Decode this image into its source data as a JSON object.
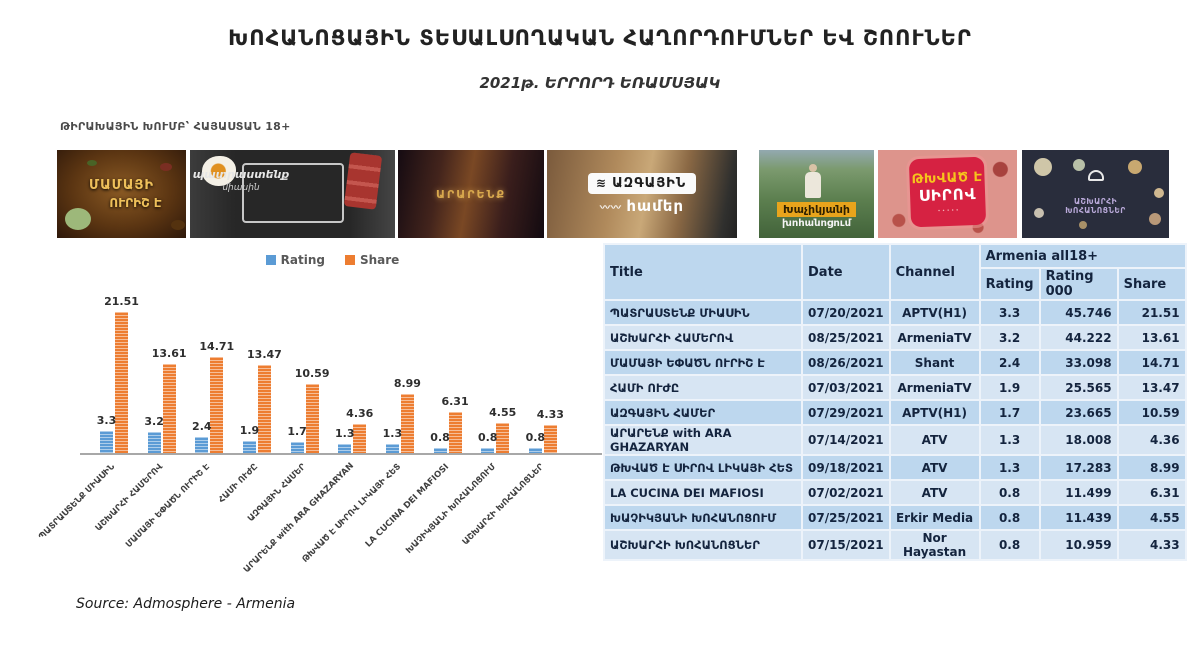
{
  "page": {
    "title": "ԽՈՀԱՆՈՑԱՅԻՆ ՏԵՍԱԼՍՈՂԱԿԱՆ ՀԱՂՈՐԴՈՒՄՆԵՐ ԵՎ ՇՈՈՒՆԵՐ",
    "subtitle": "2021թ. ԵՐՐՈՐԴ ԵՌԱՄՍՅԱԿ",
    "audience_note": "ԹԻՐԱԽԱՅԻՆ ԽՈՒՄԲ՝ ՀԱՅԱՍՏԱՆ 18+",
    "source": "Source: Admosphere - Armenia"
  },
  "thumbnails": [
    {
      "id": "mamayi-urish-e",
      "caption_lines": [
        "ՄԱՄԱՅԻ",
        "ՈՒՐԻՇ Է"
      ]
    },
    {
      "id": "patrastenq-miasin",
      "caption_lines": [
        "պատրաստենք",
        "միասին"
      ]
    },
    {
      "id": "ararenq",
      "caption_lines": [
        "ԱՐԱՐԵՆՔ"
      ]
    },
    {
      "id": "azgayin-hamer",
      "caption_lines": [
        "ԱԶԳԱՅԻՆ",
        "համեր"
      ]
    },
    {
      "id": "khachikyani-khohanocum",
      "caption_lines": [
        "Խաչիկյանի",
        "խոհանոցում"
      ]
    },
    {
      "id": "tkhvats-e-sirov",
      "caption_lines": [
        "ԹԽՎԱԾ Է",
        "ՍԻՐՈՎ"
      ]
    },
    {
      "id": "ashkharhi-khohanocner",
      "caption_lines": [
        "ԱՇԽԱՐՀԻ",
        "ԽՈՀԱՆՈՑՆԵՐ"
      ]
    }
  ],
  "chart_data": {
    "type": "bar",
    "title": "",
    "categories": [
      "ՊԱՏՐԱՍՏԵՆՔ ՄԻԱՍԻՆ",
      "ԱՇԽԱՐՀԻ ՀԱՄԵՐՈՎ",
      "ՄԱՄԱՅԻ ԵՓԱԾՆ ՈՒՐԻՇ Է",
      "ՀԱՄԻ ՈՒԺԸ",
      "ԱԶԳԱՅԻՆ ՀԱՄԵՐ",
      "ԱՐԱՐԵՆՔ with ARA GHAZARYAN",
      "ԹԽՎԱԾ Է ՍԻՐՈՎ ԼԻԿԱՅԻ ՀԵՏ",
      "LA CUCINA DEI MAFIOSI",
      "ԽԱՉԻԿՅԱՆԻ ԽՈՀԱՆՈՑՈՒՄ",
      "ԱՇԽԱՐՀԻ ԽՈՀԱՆՈՑՆԵՐ"
    ],
    "series": [
      {
        "name": "Rating",
        "color": "#5B9BD5",
        "label_decimals": 1,
        "values": [
          3.3,
          3.2,
          2.4,
          1.9,
          1.7,
          1.3,
          1.3,
          0.8,
          0.8,
          0.8
        ]
      },
      {
        "name": "Share",
        "color": "#ED7D31",
        "label_decimals": 2,
        "values": [
          21.51,
          13.61,
          14.71,
          13.47,
          10.59,
          4.36,
          8.99,
          6.31,
          4.55,
          4.33
        ]
      }
    ],
    "xlabel": "",
    "ylabel": "",
    "ylim": [
      0,
      22
    ],
    "grid": false,
    "legend_position": "top",
    "value_labels": true,
    "bar_pattern": "horizontal-stripes"
  },
  "table": {
    "columns_main": [
      "Title",
      "Date",
      "Channel"
    ],
    "group_header": "Armenia all18+",
    "columns_sub": [
      "Rating",
      "Rating 000",
      "Share"
    ],
    "rows": [
      {
        "title": "ՊԱՏՐԱՍՏԵՆՔ ՄԻԱՍԻՆ",
        "date": "07/20/2021",
        "channel": "APTV(H1)",
        "rating": "3.3",
        "rating000": "45.746",
        "share": "21.51"
      },
      {
        "title": "ԱՇԽԱՐՀԻ ՀԱՄԵՐՈՎ",
        "date": "08/25/2021",
        "channel": "ArmeniaTV",
        "rating": "3.2",
        "rating000": "44.222",
        "share": "13.61"
      },
      {
        "title": "ՄԱՄԱՅԻ ԵՓԱԾՆ ՈՒՐԻՇ Է",
        "date": "08/26/2021",
        "channel": "Shant",
        "rating": "2.4",
        "rating000": "33.098",
        "share": "14.71"
      },
      {
        "title": "ՀԱՄԻ ՈՒԺԸ",
        "date": "07/03/2021",
        "channel": "ArmeniaTV",
        "rating": "1.9",
        "rating000": "25.565",
        "share": "13.47"
      },
      {
        "title": "ԱԶԳԱՅԻՆ ՀԱՄԵՐ",
        "date": "07/29/2021",
        "channel": "APTV(H1)",
        "rating": "1.7",
        "rating000": "23.665",
        "share": "10.59"
      },
      {
        "title": "ԱՐԱՐԵՆՔ with ARA GHAZARYAN",
        "date": "07/14/2021",
        "channel": "ATV",
        "rating": "1.3",
        "rating000": "18.008",
        "share": "4.36"
      },
      {
        "title": "ԹԽՎԱԾ Է ՍԻՐՈՎ ԼԻԿԱՅԻ ՀԵՏ",
        "date": "09/18/2021",
        "channel": "ATV",
        "rating": "1.3",
        "rating000": "17.283",
        "share": "8.99"
      },
      {
        "title": "LA CUCINA DEI MAFIOSI",
        "date": "07/02/2021",
        "channel": "ATV",
        "rating": "0.8",
        "rating000": "11.499",
        "share": "6.31"
      },
      {
        "title": "ԽԱՉԻԿՅԱՆԻ ԽՈՀԱՆՈՑՈՒՄ",
        "date": "07/25/2021",
        "channel": "Erkir Media",
        "rating": "0.8",
        "rating000": "11.439",
        "share": "4.55"
      },
      {
        "title": "ԱՇԽԱՐՀԻ ԽՈՀԱՆՈՑՆԵՐ",
        "date": "07/15/2021",
        "channel": "Nor Hayastan",
        "rating": "0.8",
        "rating000": "10.959",
        "share": "4.33"
      }
    ]
  }
}
